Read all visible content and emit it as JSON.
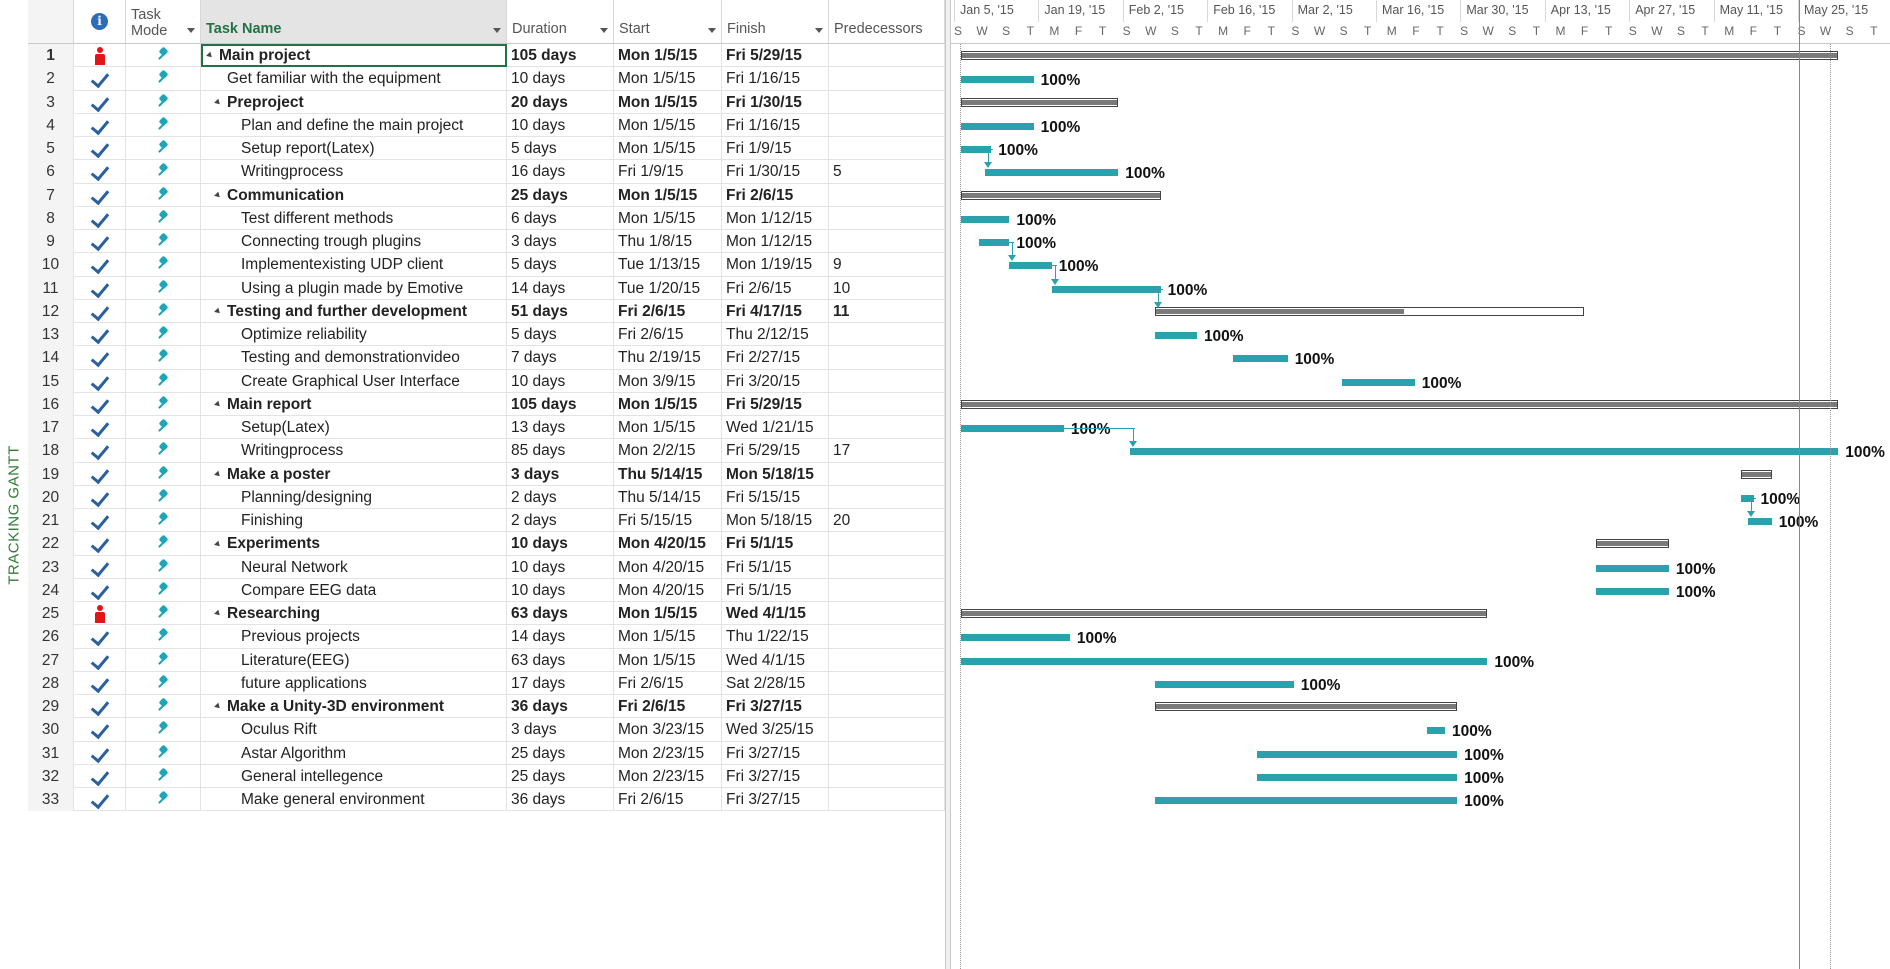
{
  "side_label": "TRACKING GANTT",
  "headers": {
    "info": "i",
    "mode": "Task Mode",
    "name": "Task Name",
    "duration": "Duration",
    "start": "Start",
    "finish": "Finish",
    "predecessors": "Predecessors"
  },
  "timescale": {
    "weeks": [
      "Jan 5, '15",
      "Jan 19, '15",
      "Feb 2, '15",
      "Feb 16, '15",
      "Mar 2, '15",
      "Mar 16, '15",
      "Mar 30, '15",
      "Apr 13, '15",
      "Apr 27, '15",
      "May 11, '15",
      "May 25, '15"
    ],
    "days": [
      "S",
      "W",
      "S",
      "T",
      "M",
      "F",
      "T",
      "S",
      "W",
      "S",
      "T",
      "M",
      "F",
      "T",
      "S",
      "W",
      "S",
      "T",
      "M",
      "F",
      "T",
      "S",
      "W",
      "S",
      "T",
      "M",
      "F",
      "T",
      "S",
      "W",
      "S",
      "T",
      "M",
      "F",
      "T",
      "S",
      "W",
      "S",
      "T",
      "M",
      "F",
      "T",
      "S",
      "W",
      "S",
      "T"
    ]
  },
  "tasks": [
    {
      "id": "1",
      "icon": "person",
      "name": "Main project",
      "duration": "105 days",
      "start": "Mon 1/5/15",
      "finish": "Fri 5/29/15",
      "pred": "",
      "level": 0,
      "summary": true,
      "pct": ""
    },
    {
      "id": "2",
      "icon": "check",
      "name": "Get familiar with the equipment",
      "duration": "10 days",
      "start": "Mon 1/5/15",
      "finish": "Fri 1/16/15",
      "pred": "",
      "level": 1,
      "summary": false,
      "pct": "100%"
    },
    {
      "id": "3",
      "icon": "check",
      "name": "Preproject",
      "duration": "20 days",
      "start": "Mon 1/5/15",
      "finish": "Fri 1/30/15",
      "pred": "",
      "level": 1,
      "summary": true,
      "pct": ""
    },
    {
      "id": "4",
      "icon": "check",
      "name": "Plan and define the main project",
      "duration": "10 days",
      "start": "Mon 1/5/15",
      "finish": "Fri 1/16/15",
      "pred": "",
      "level": 2,
      "summary": false,
      "pct": "100%"
    },
    {
      "id": "5",
      "icon": "check",
      "name": "Setup report(Latex)",
      "duration": "5 days",
      "start": "Mon 1/5/15",
      "finish": "Fri 1/9/15",
      "pred": "",
      "level": 2,
      "summary": false,
      "pct": "100%"
    },
    {
      "id": "6",
      "icon": "check",
      "name": "Writingprocess",
      "duration": "16 days",
      "start": "Fri 1/9/15",
      "finish": "Fri 1/30/15",
      "pred": "5",
      "level": 2,
      "summary": false,
      "pct": "100%"
    },
    {
      "id": "7",
      "icon": "check",
      "name": "Communication",
      "duration": "25 days",
      "start": "Mon 1/5/15",
      "finish": "Fri 2/6/15",
      "pred": "",
      "level": 1,
      "summary": true,
      "pct": ""
    },
    {
      "id": "8",
      "icon": "check",
      "name": "Test different methods",
      "duration": "6 days",
      "start": "Mon 1/5/15",
      "finish": "Mon 1/12/15",
      "pred": "",
      "level": 2,
      "summary": false,
      "pct": "100%"
    },
    {
      "id": "9",
      "icon": "check",
      "name": "Connecting trough plugins",
      "duration": "3 days",
      "start": "Thu 1/8/15",
      "finish": "Mon 1/12/15",
      "pred": "",
      "level": 2,
      "summary": false,
      "pct": "100%"
    },
    {
      "id": "10",
      "icon": "check",
      "name": "Implementexisting UDP client",
      "duration": "5 days",
      "start": "Tue 1/13/15",
      "finish": "Mon 1/19/15",
      "pred": "9",
      "level": 2,
      "summary": false,
      "pct": "100%"
    },
    {
      "id": "11",
      "icon": "check",
      "name": "Using a plugin made by Emotive",
      "duration": "14 days",
      "start": "Tue 1/20/15",
      "finish": "Fri 2/6/15",
      "pred": "10",
      "level": 2,
      "summary": false,
      "pct": "100%"
    },
    {
      "id": "12",
      "icon": "check",
      "name": "Testing and further development",
      "duration": "51 days",
      "start": "Fri 2/6/15",
      "finish": "Fri 4/17/15",
      "pred": "11",
      "level": 1,
      "summary": true,
      "pct": ""
    },
    {
      "id": "13",
      "icon": "check",
      "name": "Optimize reliability",
      "duration": "5 days",
      "start": "Fri 2/6/15",
      "finish": "Thu 2/12/15",
      "pred": "",
      "level": 2,
      "summary": false,
      "pct": "100%"
    },
    {
      "id": "14",
      "icon": "check",
      "name": "Testing and demonstrationvideo",
      "duration": "7 days",
      "start": "Thu 2/19/15",
      "finish": "Fri 2/27/15",
      "pred": "",
      "level": 2,
      "summary": false,
      "pct": "100%"
    },
    {
      "id": "15",
      "icon": "check",
      "name": "Create Graphical User Interface",
      "duration": "10 days",
      "start": "Mon 3/9/15",
      "finish": "Fri 3/20/15",
      "pred": "",
      "level": 2,
      "summary": false,
      "pct": "100%"
    },
    {
      "id": "16",
      "icon": "check",
      "name": "Main report",
      "duration": "105 days",
      "start": "Mon 1/5/15",
      "finish": "Fri 5/29/15",
      "pred": "",
      "level": 1,
      "summary": true,
      "pct": ""
    },
    {
      "id": "17",
      "icon": "check",
      "name": "Setup(Latex)",
      "duration": "13 days",
      "start": "Mon 1/5/15",
      "finish": "Wed 1/21/15",
      "pred": "",
      "level": 2,
      "summary": false,
      "pct": "100%"
    },
    {
      "id": "18",
      "icon": "check",
      "name": "Writingprocess",
      "duration": "85 days",
      "start": "Mon 2/2/15",
      "finish": "Fri 5/29/15",
      "pred": "17",
      "level": 2,
      "summary": false,
      "pct": "100%"
    },
    {
      "id": "19",
      "icon": "check",
      "name": "Make a poster",
      "duration": "3 days",
      "start": "Thu 5/14/15",
      "finish": "Mon 5/18/15",
      "pred": "",
      "level": 1,
      "summary": true,
      "pct": ""
    },
    {
      "id": "20",
      "icon": "check",
      "name": "Planning/designing",
      "duration": "2 days",
      "start": "Thu 5/14/15",
      "finish": "Fri 5/15/15",
      "pred": "",
      "level": 2,
      "summary": false,
      "pct": "100%"
    },
    {
      "id": "21",
      "icon": "check",
      "name": "Finishing",
      "duration": "2 days",
      "start": "Fri 5/15/15",
      "finish": "Mon 5/18/15",
      "pred": "20",
      "level": 2,
      "summary": false,
      "pct": "100%"
    },
    {
      "id": "22",
      "icon": "check",
      "name": "Experiments",
      "duration": "10 days",
      "start": "Mon 4/20/15",
      "finish": "Fri 5/1/15",
      "pred": "",
      "level": 1,
      "summary": true,
      "pct": ""
    },
    {
      "id": "23",
      "icon": "check",
      "name": "Neural Network",
      "duration": "10 days",
      "start": "Mon 4/20/15",
      "finish": "Fri 5/1/15",
      "pred": "",
      "level": 2,
      "summary": false,
      "pct": "100%"
    },
    {
      "id": "24",
      "icon": "check",
      "name": "Compare EEG data",
      "duration": "10 days",
      "start": "Mon 4/20/15",
      "finish": "Fri 5/1/15",
      "pred": "",
      "level": 2,
      "summary": false,
      "pct": "100%"
    },
    {
      "id": "25",
      "icon": "person",
      "name": "Researching",
      "duration": "63 days",
      "start": "Mon 1/5/15",
      "finish": "Wed 4/1/15",
      "pred": "",
      "level": 1,
      "summary": true,
      "pct": ""
    },
    {
      "id": "26",
      "icon": "check",
      "name": "Previous projects",
      "duration": "14 days",
      "start": "Mon 1/5/15",
      "finish": "Thu 1/22/15",
      "pred": "",
      "level": 2,
      "summary": false,
      "pct": "100%"
    },
    {
      "id": "27",
      "icon": "check",
      "name": "Literature(EEG)",
      "duration": "63 days",
      "start": "Mon 1/5/15",
      "finish": "Wed 4/1/15",
      "pred": "",
      "level": 2,
      "summary": false,
      "pct": "100%"
    },
    {
      "id": "28",
      "icon": "check",
      "name": "future applications",
      "duration": "17 days",
      "start": "Fri 2/6/15",
      "finish": "Sat 2/28/15",
      "pred": "",
      "level": 2,
      "summary": false,
      "pct": "100%"
    },
    {
      "id": "29",
      "icon": "check",
      "name": "Make a Unity-3D environment",
      "duration": "36 days",
      "start": "Fri 2/6/15",
      "finish": "Fri 3/27/15",
      "pred": "",
      "level": 1,
      "summary": true,
      "pct": ""
    },
    {
      "id": "30",
      "icon": "check",
      "name": "Oculus Rift",
      "duration": "3 days",
      "start": "Mon 3/23/15",
      "finish": "Wed 3/25/15",
      "pred": "",
      "level": 2,
      "summary": false,
      "pct": "100%"
    },
    {
      "id": "31",
      "icon": "check",
      "name": "Astar Algorithm",
      "duration": "25 days",
      "start": "Mon 2/23/15",
      "finish": "Fri 3/27/15",
      "pred": "",
      "level": 2,
      "summary": false,
      "pct": "100%"
    },
    {
      "id": "32",
      "icon": "check",
      "name": "General intellegence",
      "duration": "25 days",
      "start": "Mon 2/23/15",
      "finish": "Fri 3/27/15",
      "pred": "",
      "level": 2,
      "summary": false,
      "pct": "100%"
    },
    {
      "id": "33",
      "icon": "check",
      "name": "Make general environment",
      "duration": "36 days",
      "start": "Fri 2/6/15",
      "finish": "Fri 3/27/15",
      "pred": "",
      "level": 2,
      "summary": false,
      "pct": "100%"
    }
  ],
  "colors": {
    "task_bar": "#2aa1ad",
    "summary_fill": "#7a7a7a",
    "today_line": "#5aa36a",
    "accent": "#217346"
  }
}
